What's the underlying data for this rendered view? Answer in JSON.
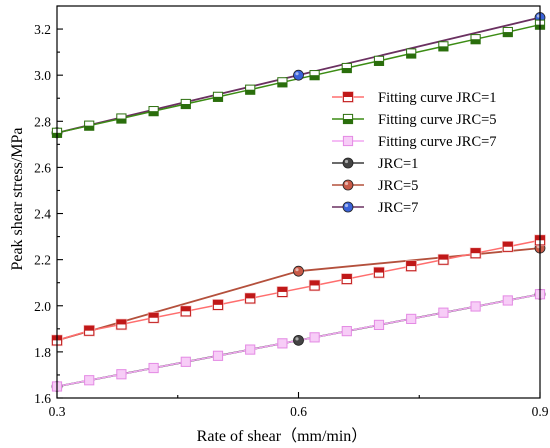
{
  "chart_data": {
    "type": "line",
    "title": "",
    "xlabel": "Rate of shear（mm/min）",
    "ylabel": "Peak shear stress/MPa",
    "xlim": [
      0.3,
      0.9
    ],
    "ylim": [
      1.6,
      3.3
    ],
    "xticks": [
      "0.3",
      "0.6",
      "0.9"
    ],
    "xtick_values": [
      0.3,
      0.6,
      0.9
    ],
    "yticks": [
      "1.6",
      "1.8",
      "2.0",
      "2.2",
      "2.4",
      "2.6",
      "2.8",
      "3.0",
      "3.2"
    ],
    "ytick_values": [
      1.6,
      1.8,
      2.0,
      2.2,
      2.4,
      2.6,
      2.8,
      3.0,
      3.2
    ],
    "grid": false,
    "legend_position": "right",
    "series": [
      {
        "name": "Fitting curve JRC=1",
        "kind": "fit",
        "marker": "square-top-half",
        "line_color": "#ff6e6e",
        "marker_fill": "#c01818",
        "marker_edge": "#f5b8b8",
        "x": [
          0.3,
          0.34,
          0.38,
          0.42,
          0.46,
          0.5,
          0.54,
          0.58,
          0.62,
          0.66,
          0.7,
          0.74,
          0.78,
          0.82,
          0.86,
          0.9
        ],
        "y": [
          1.85,
          1.892,
          1.919,
          1.948,
          1.976,
          2.004,
          2.032,
          2.06,
          2.088,
          2.116,
          2.144,
          2.172,
          2.2,
          2.228,
          2.256,
          2.284
        ]
      },
      {
        "name": "Fitting curve JRC=5",
        "kind": "fit",
        "marker": "square-bottom-half",
        "line_color": "#3c8c14",
        "marker_fill": "#2a6e0c",
        "marker_edge": "#2a6e0c",
        "x": [
          0.3,
          0.34,
          0.38,
          0.42,
          0.46,
          0.5,
          0.54,
          0.58,
          0.62,
          0.66,
          0.7,
          0.74,
          0.78,
          0.82,
          0.86,
          0.9
        ],
        "y": [
          2.75,
          2.781,
          2.812,
          2.844,
          2.875,
          2.906,
          2.937,
          2.969,
          3.0,
          3.031,
          3.062,
          3.094,
          3.125,
          3.156,
          3.187,
          3.219
        ]
      },
      {
        "name": "Fitting curve JRC=7",
        "kind": "fit",
        "marker": "square-hollow",
        "line_color": "#f2a6f2",
        "marker_fill": "#f7cdf7",
        "marker_edge": "#e48ae4",
        "x": [
          0.3,
          0.34,
          0.38,
          0.42,
          0.46,
          0.5,
          0.54,
          0.58,
          0.62,
          0.66,
          0.7,
          0.74,
          0.78,
          0.82,
          0.86,
          0.9
        ],
        "y": [
          1.65,
          1.677,
          1.703,
          1.73,
          1.757,
          1.783,
          1.81,
          1.837,
          1.863,
          1.89,
          1.917,
          1.943,
          1.97,
          1.997,
          2.023,
          2.05
        ]
      },
      {
        "name": "JRC=1",
        "kind": "data",
        "marker": "circle",
        "line_color": "#3a3a3a",
        "marker_fill": "#444444",
        "x": [
          0.3,
          0.6,
          0.9
        ],
        "y": [
          1.65,
          1.85,
          2.05
        ]
      },
      {
        "name": "JRC=5",
        "kind": "data",
        "marker": "circle",
        "line_color": "#b4503c",
        "marker_fill": "#c85a48",
        "x": [
          0.3,
          0.6,
          0.9
        ],
        "y": [
          1.85,
          2.15,
          2.25
        ]
      },
      {
        "name": "JRC=7",
        "kind": "data",
        "marker": "circle",
        "line_color": "#6a3060",
        "marker_fill": "#3a62d8",
        "x": [
          0.3,
          0.6,
          0.9
        ],
        "y": [
          2.75,
          3.0,
          3.25
        ]
      }
    ]
  }
}
